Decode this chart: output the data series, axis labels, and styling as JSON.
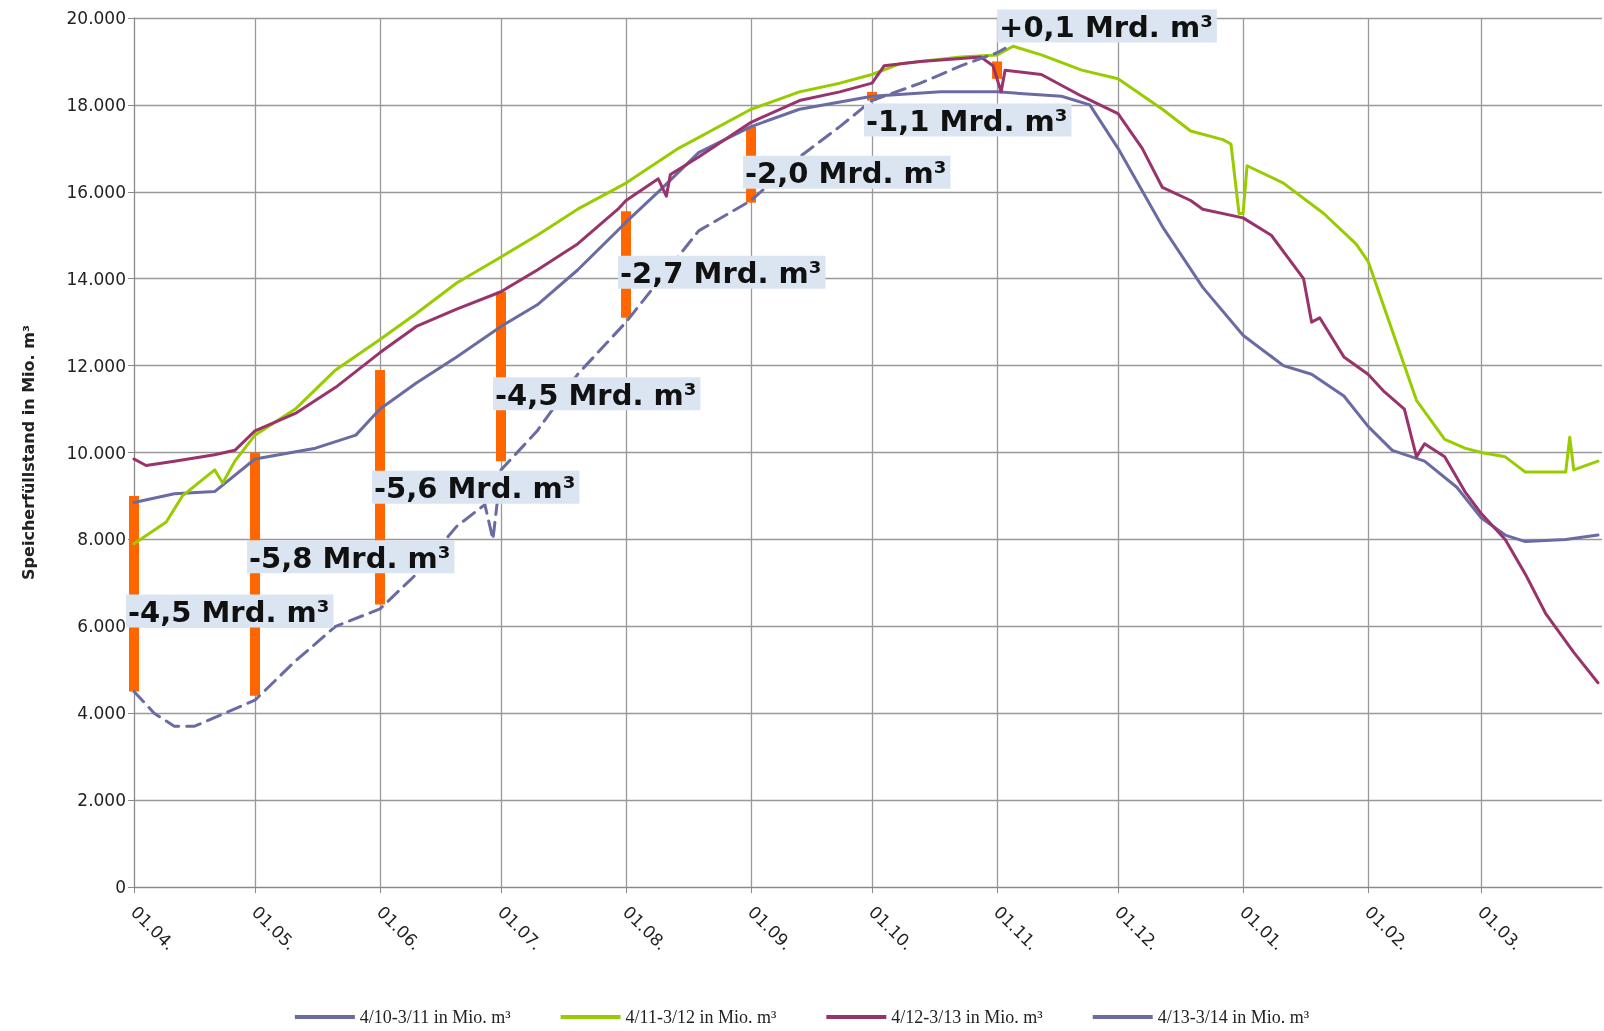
{
  "chart_data": {
    "type": "line",
    "ylabel": "Speicherfüllstand in Mio. m³",
    "xlim": [
      "2010-04-01",
      "2011-03-31"
    ],
    "xticks": [
      {
        "value": "2010-04-01",
        "label": "01.04."
      },
      {
        "value": "2010-05-01",
        "label": "01.05."
      },
      {
        "value": "2010-06-01",
        "label": "01.06."
      },
      {
        "value": "2010-07-01",
        "label": "01.07."
      },
      {
        "value": "2010-08-01",
        "label": "01.08."
      },
      {
        "value": "2010-09-01",
        "label": "01.09."
      },
      {
        "value": "2010-10-01",
        "label": "01.10."
      },
      {
        "value": "2010-11-01",
        "label": "01.11."
      },
      {
        "value": "2010-12-01",
        "label": "01.12."
      },
      {
        "value": "2011-01-01",
        "label": "01.01."
      },
      {
        "value": "2011-02-01",
        "label": "01.02."
      },
      {
        "value": "2011-03-01",
        "label": "01.03."
      }
    ],
    "ylim": [
      0,
      20000
    ],
    "yticks": [
      {
        "value": 0,
        "label": "0"
      },
      {
        "value": 2000,
        "label": "2.000"
      },
      {
        "value": 4000,
        "label": "4.000"
      },
      {
        "value": 6000,
        "label": "6.000"
      },
      {
        "value": 8000,
        "label": "8.000"
      },
      {
        "value": 10000,
        "label": "10.000"
      },
      {
        "value": 12000,
        "label": "12.000"
      },
      {
        "value": 14000,
        "label": "14.000"
      },
      {
        "value": 16000,
        "label": "16.000"
      },
      {
        "value": 18000,
        "label": "18.000"
      },
      {
        "value": 20000,
        "label": "20.000"
      }
    ],
    "grid": true,
    "legend": "bottom",
    "marker": "none",
    "series": [
      {
        "name": "4/10-3/11 in Mio. m³",
        "color": "#6b6ba4",
        "line_style": "solid",
        "x": [
          "2010-04-01",
          "2010-04-11",
          "2010-04-21",
          "2010-05-01",
          "2010-05-16",
          "2010-05-26",
          "2010-06-01",
          "2010-06-10",
          "2010-06-20",
          "2010-07-01",
          "2010-07-10",
          "2010-07-20",
          "2010-08-01",
          "2010-08-09",
          "2010-08-19",
          "2010-09-01",
          "2010-09-13",
          "2010-10-01",
          "2010-10-18",
          "2010-11-01",
          "2010-11-17",
          "2010-11-24",
          "2010-12-01",
          "2010-12-12",
          "2010-12-22",
          "2011-01-01",
          "2011-01-11",
          "2011-01-18",
          "2011-01-26",
          "2011-02-01",
          "2011-02-07",
          "2011-02-15",
          "2011-02-23",
          "2011-03-01",
          "2011-03-07",
          "2011-03-12",
          "2011-03-22",
          "2011-03-30"
        ],
        "values": [
          8850,
          9050,
          9100,
          9850,
          10100,
          10400,
          11000,
          11600,
          12200,
          12900,
          13400,
          14200,
          15300,
          16000,
          16900,
          17500,
          17900,
          18200,
          18300,
          18300,
          18200,
          18000,
          17000,
          15200,
          13800,
          12700,
          12000,
          11800,
          11300,
          10600,
          10050,
          9800,
          9200,
          8500,
          8100,
          7950,
          8000,
          8100
        ]
      },
      {
        "name": "4/11-3/12 in Mio. m³",
        "color": "#99cc00",
        "line_style": "solid",
        "x": [
          "2010-04-01",
          "2010-04-09",
          "2010-04-13",
          "2010-04-21",
          "2010-04-23",
          "2010-04-26",
          "2010-05-01",
          "2010-05-11",
          "2010-05-21",
          "2010-06-01",
          "2010-06-10",
          "2010-06-20",
          "2010-07-01",
          "2010-07-10",
          "2010-07-20",
          "2010-08-01",
          "2010-08-14",
          "2010-09-01",
          "2010-09-13",
          "2010-09-23",
          "2010-10-01",
          "2010-10-08",
          "2010-10-23",
          "2010-11-01",
          "2010-11-05",
          "2010-11-12",
          "2010-11-22",
          "2010-12-01",
          "2010-12-12",
          "2010-12-19",
          "2010-12-27",
          "2010-12-29",
          "2010-12-31",
          "2011-01-01",
          "2011-01-02",
          "2011-01-11",
          "2011-01-21",
          "2011-01-29",
          "2011-02-01",
          "2011-02-07",
          "2011-02-13",
          "2011-02-20",
          "2011-02-25",
          "2011-03-01",
          "2011-03-07",
          "2011-03-12",
          "2011-03-19",
          "2011-03-22",
          "2011-03-23",
          "2011-03-24",
          "2011-03-30"
        ],
        "values": [
          7900,
          8400,
          9000,
          9600,
          9300,
          9800,
          10400,
          11000,
          11900,
          12600,
          13200,
          13900,
          14500,
          15000,
          15600,
          16200,
          17000,
          17900,
          18300,
          18500,
          18700,
          18950,
          19100,
          19150,
          19350,
          19150,
          18800,
          18600,
          17900,
          17400,
          17200,
          17100,
          15500,
          15500,
          16600,
          16200,
          15500,
          14800,
          14400,
          12800,
          11200,
          10300,
          10100,
          10000,
          9900,
          9550,
          9550,
          9550,
          10350,
          9600,
          9800
        ]
      },
      {
        "name": "4/12-3/13 in Mio. m³",
        "color": "#99336b",
        "line_style": "solid",
        "x": [
          "2010-04-01",
          "2010-04-04",
          "2010-04-11",
          "2010-04-21",
          "2010-04-26",
          "2010-05-01",
          "2010-05-11",
          "2010-05-21",
          "2010-06-01",
          "2010-06-10",
          "2010-06-20",
          "2010-07-01",
          "2010-07-10",
          "2010-07-20",
          "2010-07-30",
          "2010-08-01",
          "2010-08-09",
          "2010-08-11",
          "2010-08-12",
          "2010-08-19",
          "2010-09-01",
          "2010-09-13",
          "2010-09-23",
          "2010-10-01",
          "2010-10-04",
          "2010-10-13",
          "2010-10-28",
          "2010-10-31",
          "2010-11-02",
          "2010-11-03",
          "2010-11-12",
          "2010-11-22",
          "2010-12-01",
          "2010-12-07",
          "2010-12-12",
          "2010-12-19",
          "2010-12-22",
          "2011-01-01",
          "2011-01-08",
          "2011-01-16",
          "2011-01-18",
          "2011-01-20",
          "2011-01-26",
          "2011-02-01",
          "2011-02-05",
          "2011-02-10",
          "2011-02-13",
          "2011-02-15",
          "2011-02-20",
          "2011-02-25",
          "2011-03-01",
          "2011-03-07",
          "2011-03-12",
          "2011-03-17",
          "2011-03-24",
          "2011-03-30"
        ],
        "values": [
          9850,
          9700,
          9800,
          9950,
          10050,
          10500,
          10900,
          11500,
          12300,
          12900,
          13300,
          13700,
          14200,
          14800,
          15600,
          15800,
          16300,
          15900,
          16400,
          16800,
          17600,
          18100,
          18300,
          18500,
          18900,
          19000,
          19100,
          18900,
          18300,
          18800,
          18700,
          18200,
          17800,
          17000,
          16100,
          15800,
          15600,
          15400,
          15000,
          14000,
          13000,
          13100,
          12200,
          11800,
          11400,
          11000,
          9900,
          10200,
          9900,
          9100,
          8600,
          8000,
          7200,
          6300,
          5400,
          4700
        ]
      },
      {
        "name": "4/13-3/14 in Mio. m³",
        "color": "#6b6ba4",
        "line_style": "dashed",
        "x": [
          "2010-04-01",
          "2010-04-06",
          "2010-04-11",
          "2010-04-16",
          "2010-04-26",
          "2010-05-01",
          "2010-05-11",
          "2010-05-21",
          "2010-06-01",
          "2010-06-10",
          "2010-06-20",
          "2010-06-27",
          "2010-06-29",
          "2010-07-01",
          "2010-07-10",
          "2010-07-20",
          "2010-08-01",
          "2010-08-19",
          "2010-09-01",
          "2010-09-13",
          "2010-09-23",
          "2010-10-01",
          "2010-10-13",
          "2010-10-23",
          "2010-11-01",
          "2010-11-03"
        ],
        "values": [
          4500,
          4000,
          3700,
          3700,
          4100,
          4300,
          5200,
          6000,
          6400,
          7200,
          8300,
          8800,
          8000,
          9600,
          10500,
          11800,
          13000,
          15100,
          15800,
          16800,
          17500,
          18100,
          18500,
          18900,
          19200,
          19300
        ]
      },
      {
        "type": "bar",
        "color": "#ff6600",
        "x": [
          "2010-04-01",
          "2010-05-01",
          "2010-06-01",
          "2010-07-01",
          "2010-08-01",
          "2010-09-01",
          "2010-10-01",
          "2010-11-01"
        ],
        "base": [
          9000,
          10000,
          11900,
          13700,
          15550,
          17500,
          18300,
          19000
        ],
        "values": [
          -4500,
          -5600,
          -5400,
          -3900,
          -2450,
          -1750,
          -200,
          -400
        ]
      }
    ],
    "annotations": [
      {
        "text": "-4,5 Mrd. m³",
        "x": "2010-04-01",
        "y": 6800
      },
      {
        "text": "-5,8 Mrd. m³",
        "x": "2010-05-01",
        "y": 8050
      },
      {
        "text": "-5,6 Mrd. m³",
        "x": "2010-06-01",
        "y": 9650
      },
      {
        "text": "-4,5 Mrd. m³",
        "x": "2010-07-01",
        "y": 11800
      },
      {
        "text": "-2,7 Mrd. m³",
        "x": "2010-08-01",
        "y": 14600
      },
      {
        "text": "-2,0 Mrd. m³",
        "x": "2010-09-01",
        "y": 16900
      },
      {
        "text": "-1,1 Mrd. m³",
        "x": "2010-10-01",
        "y": 18100
      },
      {
        "text": "+0,1 Mrd. m³",
        "x": "2010-11-03",
        "y": 19300
      }
    ]
  }
}
